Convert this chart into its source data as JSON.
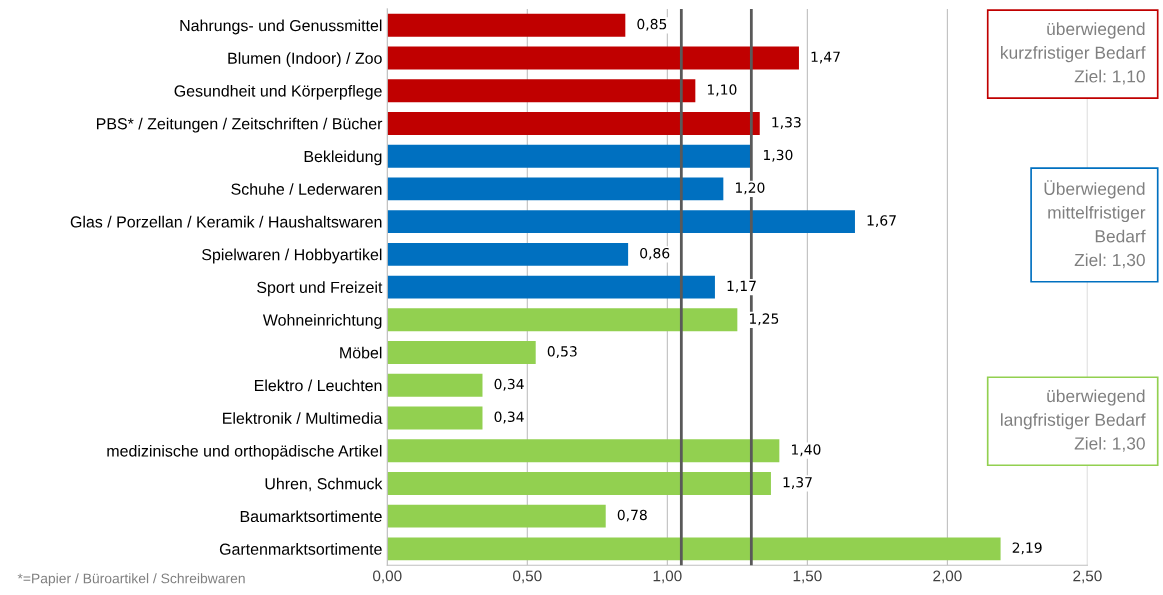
{
  "chart_data": {
    "type": "bar",
    "orientation": "horizontal",
    "categories": [
      "Nahrungs- und Genussmittel",
      "Blumen (Indoor) / Zoo",
      "Gesundheit und Körperpflege",
      "PBS* / Zeitungen / Zeitschriften / Bücher",
      "Bekleidung",
      "Schuhe / Lederwaren",
      "Glas / Porzellan / Keramik / Haushaltswaren",
      "Spielwaren / Hobbyartikel",
      "Sport und Freizeit",
      "Wohneinrichtung",
      "Möbel",
      "Elektro / Leuchten",
      "Elektronik / Multimedia",
      "medizinische und orthopädische Artikel",
      "Uhren, Schmuck",
      "Baumarktsortimente",
      "Gartenmarktsortimente"
    ],
    "values": [
      0.85,
      1.47,
      1.1,
      1.33,
      1.3,
      1.2,
      1.67,
      0.86,
      1.17,
      1.25,
      0.53,
      0.34,
      0.34,
      1.4,
      1.37,
      0.78,
      2.19
    ],
    "value_labels": [
      "0,85",
      "1,47",
      "1,10",
      "1,33",
      "1,30",
      "1,20",
      "1,67",
      "0,86",
      "1,17",
      "1,25",
      "0,53",
      "0,34",
      "0,34",
      "1,40",
      "1,37",
      "0,78",
      "2,19"
    ],
    "colors": [
      "#c00000",
      "#c00000",
      "#c00000",
      "#c00000",
      "#0070c0",
      "#0070c0",
      "#0070c0",
      "#0070c0",
      "#0070c0",
      "#92d050",
      "#92d050",
      "#92d050",
      "#92d050",
      "#92d050",
      "#92d050",
      "#92d050",
      "#92d050"
    ],
    "xlim": [
      0,
      2.5
    ],
    "xticks": [
      {
        "value": 0,
        "label": "0,00"
      },
      {
        "value": 0.5,
        "label": "0,50"
      },
      {
        "value": 1.0,
        "label": "1,00"
      },
      {
        "value": 1.5,
        "label": "1,50"
      },
      {
        "value": 2.0,
        "label": "2,00"
      },
      {
        "value": 2.5,
        "label": "2,50"
      }
    ],
    "grid": "x",
    "ref_lines": [
      {
        "axis": "x",
        "value": 1.05,
        "color": "#595959"
      },
      {
        "axis": "x",
        "value": 1.3,
        "color": "#595959"
      }
    ],
    "annotations": [
      "überwiegend\nkurzfristiger Bedarf\nZiel: 1,10",
      "Überwiegend\nmittelfristiger\nBedarf\nZiel: 1,30",
      "überwiegend\nlangfristiger Bedarf\nZiel: 1,30",
      "*=Papier / Büroartikel / Schreibwaren"
    ]
  }
}
